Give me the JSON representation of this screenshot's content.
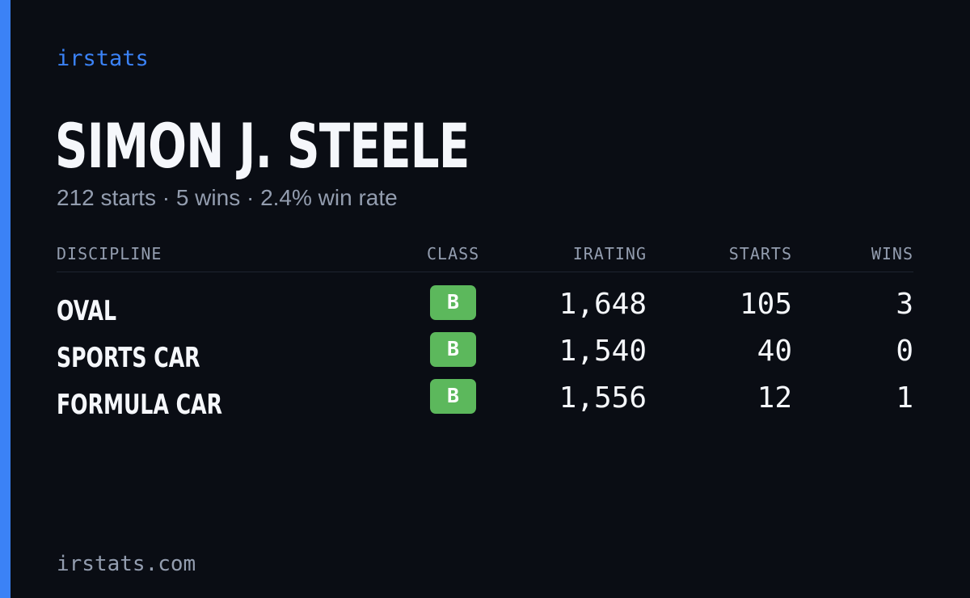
{
  "brand": "irstats",
  "driver": {
    "name": "SIMON J. STEELE",
    "summary": "212 starts · 5 wins · 2.4% win rate"
  },
  "table": {
    "headers": {
      "discipline": "DISCIPLINE",
      "class": "CLASS",
      "irating": "IRATING",
      "starts": "STARTS",
      "wins": "WINS"
    },
    "rows": [
      {
        "discipline": "OVAL",
        "class": "B",
        "irating": "1,648",
        "starts": "105",
        "wins": "3"
      },
      {
        "discipline": "SPORTS CAR",
        "class": "B",
        "irating": "1,540",
        "starts": "40",
        "wins": "0"
      },
      {
        "discipline": "FORMULA CAR",
        "class": "B",
        "irating": "1,556",
        "starts": "12",
        "wins": "1"
      }
    ]
  },
  "footer": "irstats.com",
  "colors": {
    "background": "#0a0d14",
    "accent": "#3b82f6",
    "class_b": "#5cb85c",
    "text_primary": "#f5f7fb",
    "text_muted": "#939daf"
  }
}
